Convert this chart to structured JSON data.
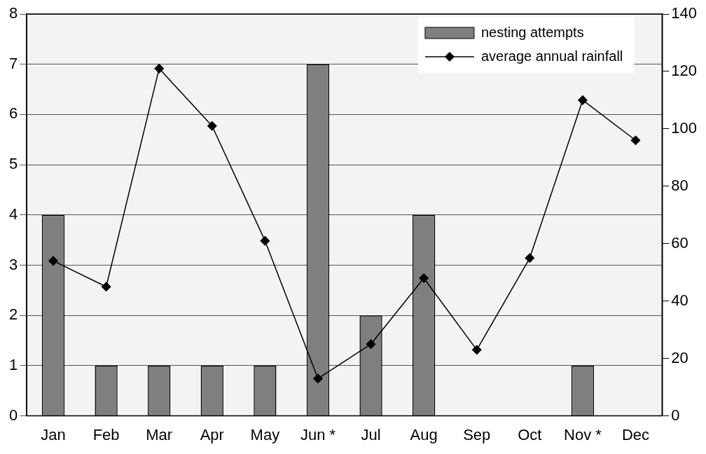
{
  "chart_data": {
    "type": "bar",
    "categories": [
      "Jan",
      "Feb",
      "Mar",
      "Apr",
      "May",
      "Jun *",
      "Jul",
      "Aug",
      "Sep",
      "Oct",
      "Nov *",
      "Dec"
    ],
    "series": [
      {
        "name": "nesting attempts",
        "color": "#7f7f7f",
        "values": [
          4,
          1,
          1,
          1,
          1,
          7,
          2,
          4,
          0,
          0,
          1,
          0
        ]
      },
      {
        "name": "average annual rainfall",
        "type": "line",
        "axis": "y2",
        "color": "#000000",
        "values": [
          54,
          45,
          121,
          101,
          61,
          13,
          25,
          48,
          23,
          55,
          110,
          96
        ]
      }
    ],
    "ylim": [
      0,
      8
    ],
    "yticks": [
      0,
      1,
      2,
      3,
      4,
      5,
      6,
      7,
      8
    ],
    "y2lim": [
      0,
      140
    ],
    "y2ticks": [
      0,
      20,
      40,
      60,
      80,
      100,
      120,
      140
    ],
    "grid": "y",
    "legend": "top right",
    "marker": "diamond",
    "line_style": "solid"
  }
}
